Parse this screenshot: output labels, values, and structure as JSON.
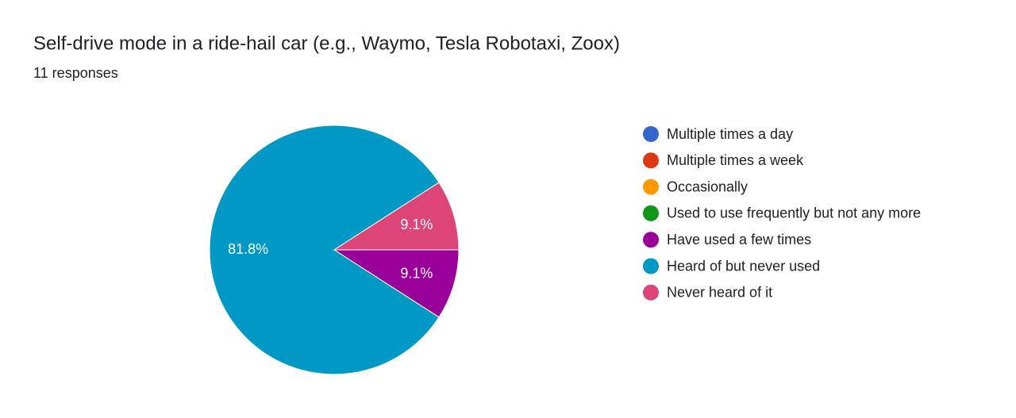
{
  "chart_data": {
    "type": "pie",
    "title": "Self-drive mode in a ride-hail car (e.g., Waymo, Tesla Robotaxi, Zoox)",
    "subtitle": "11 responses",
    "categories": [
      "Multiple times a day",
      "Multiple times a week",
      "Occasionally",
      "Used to use frequently but not any more",
      "Have used a few times",
      "Heard of but never used",
      "Never heard of it"
    ],
    "values": [
      0,
      0,
      0,
      0,
      9.1,
      81.8,
      9.1
    ],
    "value_labels": [
      null,
      null,
      null,
      null,
      "9.1%",
      "81.8%",
      "9.1%"
    ],
    "colors": [
      "#3366cc",
      "#dc3912",
      "#ff9900",
      "#109618",
      "#990099",
      "#0099c6",
      "#dd4477"
    ],
    "legend": "right"
  }
}
